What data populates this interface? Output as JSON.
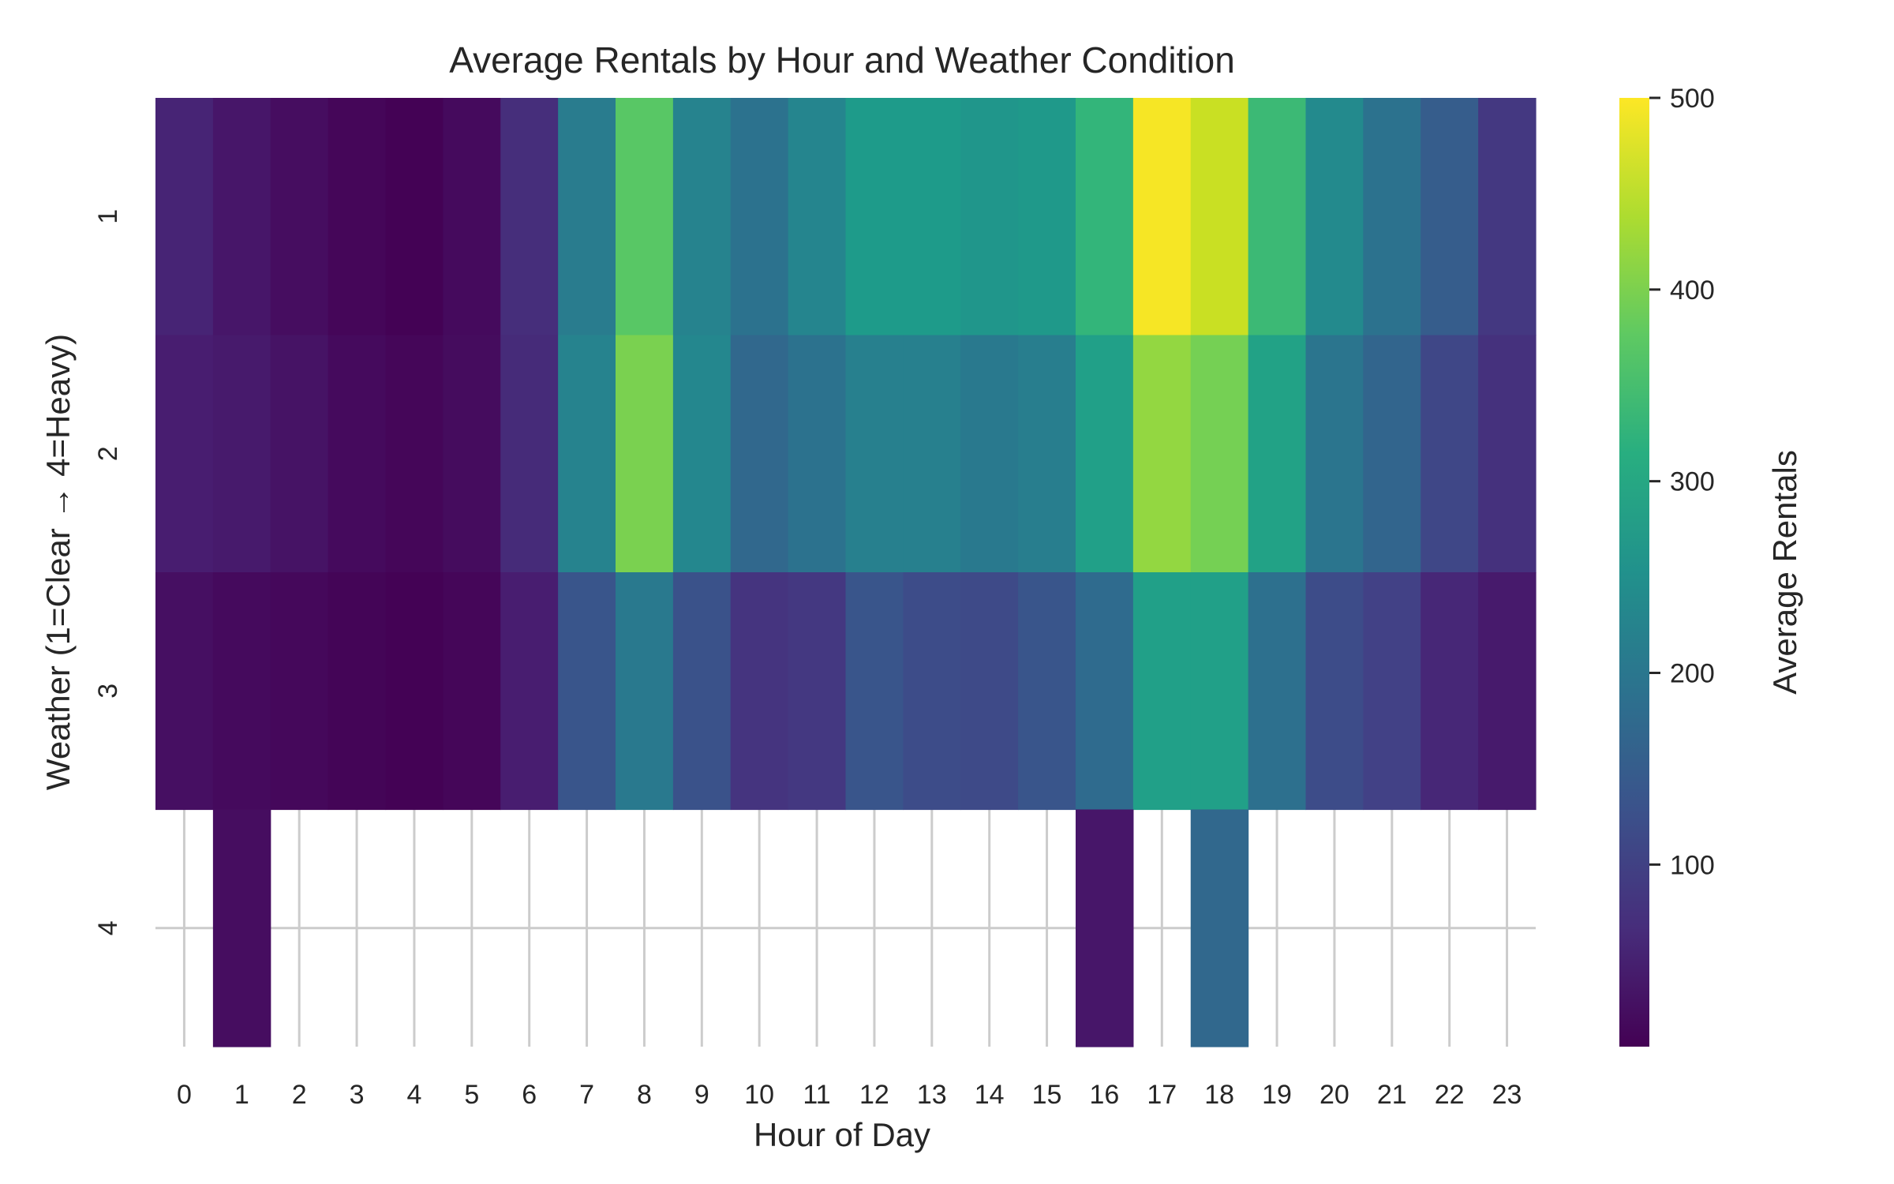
{
  "chart_data": {
    "type": "heatmap",
    "title": "Average Rentals by Hour and Weather Condition",
    "xlabel": "Hour of Day",
    "ylabel": "Weather (1=Clear → 4=Heavy)",
    "x": [
      "0",
      "1",
      "2",
      "3",
      "4",
      "5",
      "6",
      "7",
      "8",
      "9",
      "10",
      "11",
      "12",
      "13",
      "14",
      "15",
      "16",
      "17",
      "18",
      "19",
      "20",
      "21",
      "22",
      "23"
    ],
    "y": [
      "1",
      "2",
      "3",
      "4"
    ],
    "values": [
      [
        55,
        35,
        22,
        12,
        6,
        18,
        70,
        210,
        370,
        225,
        190,
        230,
        275,
        275,
        265,
        270,
        330,
        495,
        460,
        340,
        240,
        190,
        150,
        85
      ],
      [
        45,
        40,
        30,
        18,
        12,
        20,
        65,
        225,
        400,
        235,
        170,
        190,
        220,
        220,
        205,
        215,
        285,
        420,
        395,
        290,
        195,
        165,
        110,
        75
      ],
      [
        25,
        18,
        15,
        10,
        6,
        12,
        45,
        135,
        205,
        130,
        80,
        85,
        135,
        120,
        115,
        135,
        175,
        285,
        285,
        185,
        120,
        100,
        60,
        40
      ],
      [
        null,
        22,
        null,
        null,
        null,
        null,
        null,
        null,
        null,
        null,
        null,
        null,
        null,
        null,
        null,
        null,
        35,
        null,
        170,
        null,
        null,
        null,
        null,
        null
      ]
    ],
    "colorscale": "viridis",
    "colorbar": {
      "label": "Average Rentals",
      "min": 5,
      "max": 500,
      "ticks": [
        "100",
        "200",
        "300",
        "400",
        "500"
      ]
    },
    "grid": true
  }
}
